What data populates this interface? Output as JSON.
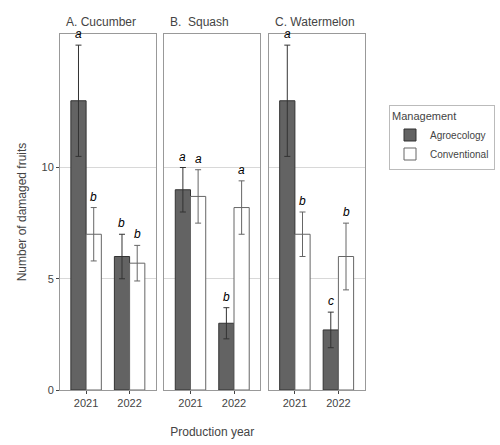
{
  "chart_data": [
    {
      "type": "bar",
      "title": "A. Cucumber",
      "ylabel": "Number of damaged fruits",
      "categories": [
        "2021",
        "2022"
      ],
      "series": [
        {
          "name": "Agroecology",
          "color": "#636363",
          "values": [
            13.0,
            6.0
          ],
          "errors": [
            2.5,
            1.0
          ],
          "letters": [
            "a",
            "b"
          ]
        },
        {
          "name": "Conventional",
          "color": "#ffffff",
          "values": [
            7.0,
            5.7
          ],
          "errors": [
            1.2,
            0.8
          ],
          "letters": [
            "b",
            "b"
          ]
        }
      ],
      "ylim": [
        0,
        16
      ],
      "yticks": [
        0,
        5,
        10
      ],
      "grid": true,
      "tick_labels": true
    },
    {
      "type": "bar",
      "title": "B.  Squash",
      "xlabel": "Production year",
      "categories": [
        "2021",
        "2022"
      ],
      "series": [
        {
          "name": "Agroecology",
          "color": "#636363",
          "values": [
            9.0,
            3.0
          ],
          "errors": [
            1.0,
            0.7
          ],
          "letters": [
            "a",
            "b"
          ]
        },
        {
          "name": "Conventional",
          "color": "#ffffff",
          "values": [
            8.7,
            8.2
          ],
          "errors": [
            1.2,
            1.2
          ],
          "letters": [
            "a",
            "a"
          ]
        }
      ],
      "ylim": [
        0,
        16
      ],
      "yticks": [
        0,
        5,
        10
      ],
      "grid": true,
      "tick_labels": "x"
    },
    {
      "type": "bar",
      "title": "C. Watermelon",
      "categories": [
        "2021",
        "2022"
      ],
      "series": [
        {
          "name": "Agroecology",
          "color": "#636363",
          "values": [
            13.0,
            2.7
          ],
          "errors": [
            2.5,
            0.8
          ],
          "letters": [
            "a",
            "c"
          ]
        },
        {
          "name": "Conventional",
          "color": "#ffffff",
          "values": [
            7.0,
            6.0
          ],
          "errors": [
            1.0,
            1.5
          ],
          "letters": [
            "b",
            "b"
          ]
        }
      ],
      "ylim": [
        0,
        16
      ],
      "yticks": [
        0,
        5,
        10
      ],
      "grid": true,
      "tick_labels": "x",
      "legend": "right",
      "legend_title": "Management"
    }
  ]
}
